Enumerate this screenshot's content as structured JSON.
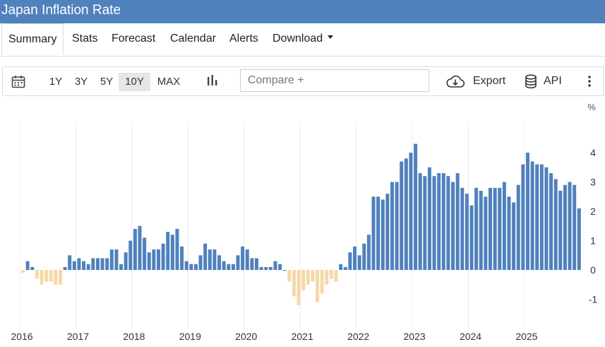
{
  "title": "Japan Inflation Rate",
  "tabs": [
    {
      "label": "Summary",
      "active": true
    },
    {
      "label": "Stats"
    },
    {
      "label": "Forecast"
    },
    {
      "label": "Calendar"
    },
    {
      "label": "Alerts"
    },
    {
      "label": "Download"
    }
  ],
  "toolbar": {
    "calendar_icon": "calendar-icon",
    "ranges": [
      "1Y",
      "3Y",
      "5Y",
      "10Y",
      "MAX"
    ],
    "active_range": "10Y",
    "chart_type_icon": "bar-chart-icon",
    "compare_placeholder": "Compare +",
    "export_label": "Export",
    "export_icon": "cloud-download-icon",
    "api_label": "API",
    "api_icon": "database-icon",
    "more_icon": "more-vertical-icon"
  },
  "colors": {
    "header": "#4f81bd",
    "positive": "#4f81bd",
    "negative": "#f5d9a8"
  },
  "chart_data": {
    "type": "bar",
    "unit": "%",
    "ylim": [
      -1.3,
      4.5
    ],
    "yticks": [
      -1,
      0,
      1,
      2,
      3,
      4
    ],
    "grid": "vertical",
    "xticks": [
      "2016",
      "2017",
      "2018",
      "2019",
      "2020",
      "2021",
      "2022",
      "2023",
      "2024",
      "2025"
    ],
    "start": "2016-01",
    "values": [
      -0.1,
      0.3,
      0.1,
      -0.3,
      -0.5,
      -0.4,
      -0.4,
      -0.5,
      -0.5,
      0.1,
      0.5,
      0.3,
      0.4,
      0.3,
      0.2,
      0.4,
      0.4,
      0.4,
      0.4,
      0.7,
      0.7,
      0.2,
      0.6,
      1.0,
      1.4,
      1.5,
      1.1,
      0.6,
      0.7,
      0.7,
      0.9,
      1.3,
      1.2,
      1.4,
      0.8,
      0.3,
      0.2,
      0.2,
      0.5,
      0.9,
      0.7,
      0.7,
      0.5,
      0.3,
      0.2,
      0.2,
      0.5,
      0.8,
      0.7,
      0.4,
      0.4,
      0.1,
      0.1,
      0.1,
      0.3,
      0.2,
      0.0,
      -0.4,
      -0.9,
      -1.2,
      -0.7,
      -0.5,
      -0.4,
      -1.1,
      -0.8,
      -0.5,
      -0.3,
      -0.4,
      0.2,
      0.1,
      0.6,
      0.8,
      0.5,
      0.9,
      1.2,
      2.5,
      2.5,
      2.4,
      2.6,
      3.0,
      3.0,
      3.7,
      3.8,
      4.0,
      4.3,
      3.3,
      3.2,
      3.5,
      3.2,
      3.3,
      3.3,
      3.2,
      3.0,
      3.3,
      2.8,
      2.6,
      2.2,
      2.8,
      2.7,
      2.5,
      2.8,
      2.8,
      2.8,
      3.0,
      2.5,
      2.3,
      2.9,
      3.6,
      4.0,
      3.7,
      3.6,
      3.6,
      3.5,
      3.3,
      3.1,
      2.7,
      2.9,
      3.0,
      2.9,
      2.1
    ]
  }
}
